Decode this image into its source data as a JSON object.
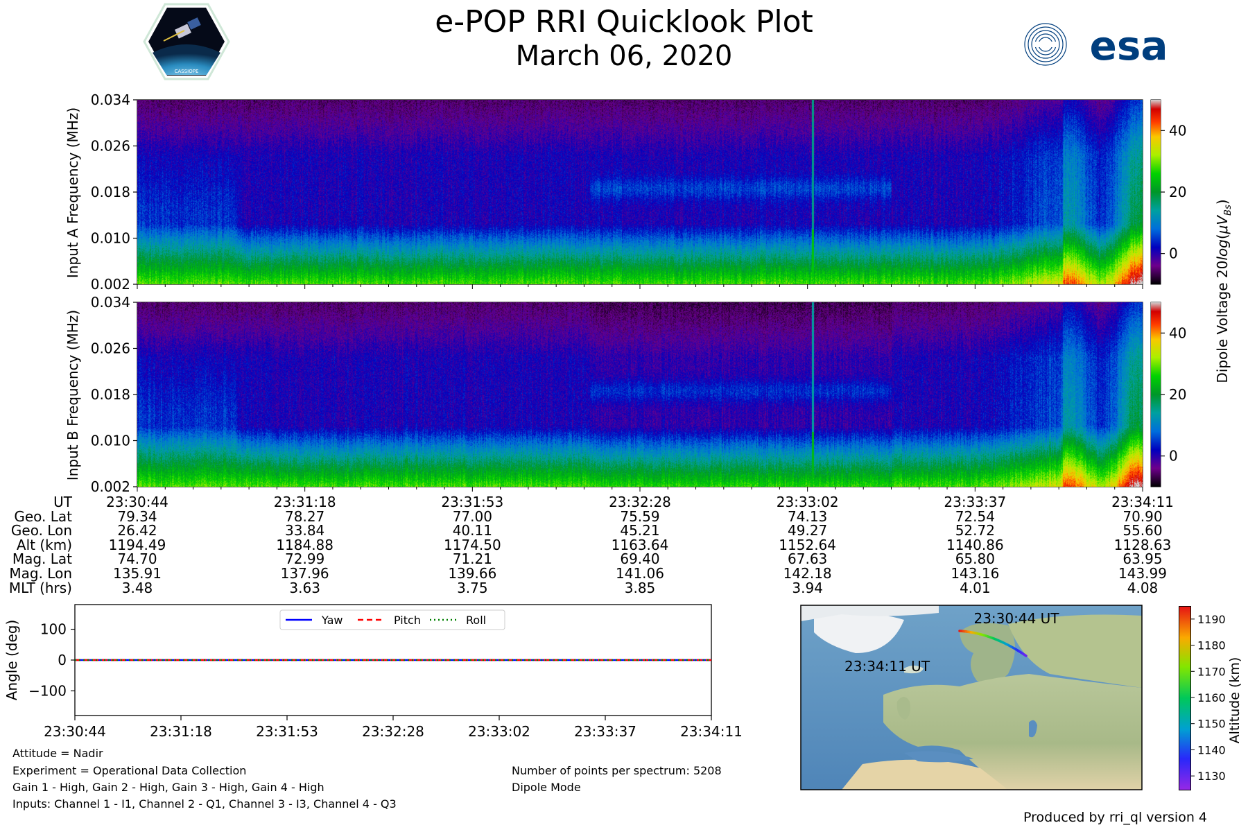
{
  "header": {
    "title": "e-POP RRI Quicklook Plot",
    "date": "March 06, 2020",
    "mission_logo_text": "CASSIOPE",
    "agency_logo_text": "esa"
  },
  "chart_data": [
    {
      "type": "heatmap",
      "name": "Input A spectrogram",
      "ylabel": "Input A Frequency (MHz)",
      "ylim": [
        0.002,
        0.034
      ],
      "yticks": [
        "0.034",
        "0.026",
        "0.018",
        "0.010",
        "0.002"
      ],
      "colorbar": {
        "range": [
          -10,
          50
        ],
        "ticks": [
          "40",
          "20",
          "0"
        ],
        "label": "Dipole Voltage 20log(μV_B s)"
      },
      "interference_time": "23:33:02"
    },
    {
      "type": "heatmap",
      "name": "Input B spectrogram",
      "ylabel": "Input B Frequency (MHz)",
      "ylim": [
        0.002,
        0.034
      ],
      "yticks": [
        "0.034",
        "0.026",
        "0.018",
        "0.010",
        "0.002"
      ],
      "colorbar": {
        "range": [
          -10,
          50
        ],
        "ticks": [
          "40",
          "20",
          "0"
        ],
        "label": "Dipole Voltage 20log(μV_B s)"
      }
    },
    {
      "type": "line",
      "name": "attitude",
      "ylabel": "Angle (deg)",
      "ylim": [
        -180,
        180
      ],
      "yticks": [
        "100",
        "0",
        "−100"
      ],
      "x": [
        "23:30:44",
        "23:31:18",
        "23:31:53",
        "23:32:28",
        "23:33:02",
        "23:33:37",
        "23:34:11"
      ],
      "series": [
        {
          "name": "Yaw",
          "values": [
            0,
            0,
            0,
            0,
            0,
            0,
            0
          ],
          "color": "#0000ff",
          "style": "solid"
        },
        {
          "name": "Pitch",
          "values": [
            0,
            0,
            0,
            0,
            0,
            0,
            0
          ],
          "color": "#ff0000",
          "style": "dashed"
        },
        {
          "name": "Roll",
          "values": [
            0,
            0,
            0,
            0,
            0,
            0,
            0
          ],
          "color": "#008000",
          "style": "dotted"
        }
      ],
      "legend": "top-center"
    },
    {
      "type": "scatter",
      "name": "ground track map",
      "start_label": "23:30:44 UT",
      "end_label": "23:34:11 UT",
      "colorbar": {
        "label": "Altitude (km)",
        "range": [
          1125,
          1195
        ],
        "ticks": [
          "1190",
          "1180",
          "1170",
          "1160",
          "1150",
          "1140",
          "1130"
        ]
      }
    }
  ],
  "ephemeris": {
    "row_labels": [
      "UT",
      "Geo. Lat",
      "Geo. Lon",
      "Alt (km)",
      "Mag. Lat",
      "Mag. Lon",
      "MLT (hrs)"
    ],
    "columns": [
      [
        "23:30:44",
        "79.34",
        "26.42",
        "1194.49",
        "74.70",
        "135.91",
        "3.48"
      ],
      [
        "23:31:18",
        "78.27",
        "33.84",
        "1184.88",
        "72.99",
        "137.96",
        "3.63"
      ],
      [
        "23:31:53",
        "77.00",
        "40.11",
        "1174.50",
        "71.21",
        "139.66",
        "3.75"
      ],
      [
        "23:32:28",
        "75.59",
        "45.21",
        "1163.64",
        "69.40",
        "141.06",
        "3.85"
      ],
      [
        "23:33:02",
        "74.13",
        "49.27",
        "1152.64",
        "67.63",
        "142.18",
        "3.94"
      ],
      [
        "23:33:37",
        "72.54",
        "52.72",
        "1140.86",
        "65.80",
        "143.16",
        "4.01"
      ],
      [
        "23:34:11",
        "70.90",
        "55.60",
        "1128.63",
        "63.95",
        "143.99",
        "4.08"
      ]
    ]
  },
  "notes": {
    "attitude": "Attitude = Nadir",
    "experiment": "Experiment = Operational Data Collection",
    "gains": "Gain 1 - High, Gain 2 - High, Gain 3 - High, Gain 4 - High",
    "inputs": "Inputs: Channel 1 - I1, Channel 2 - Q1, Channel 3 - I3, Channel 4 - Q3",
    "points": "Number of points per spectrum: 5208",
    "mode": "Dipole Mode",
    "produced_by": "Produced by rri_ql version 4"
  }
}
